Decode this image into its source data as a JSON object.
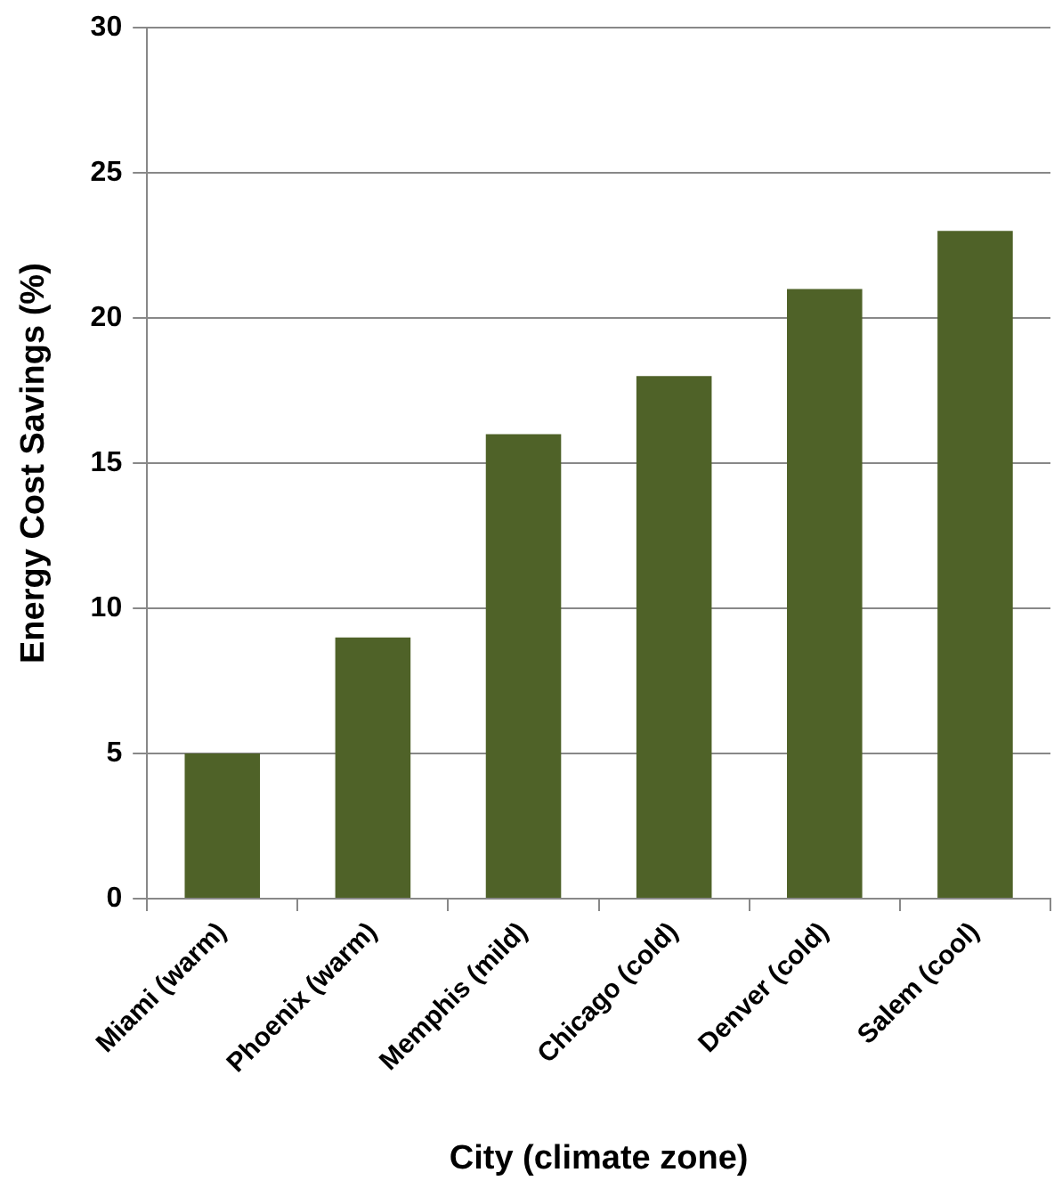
{
  "chart_data": {
    "type": "bar",
    "xlabel": "City (climate zone)",
    "ylabel": "Energy Cost Savings (%)",
    "categories": [
      "Miami (warm)",
      "Phoenix (warm)",
      "Memphis (mild)",
      "Chicago (cold)",
      "Denver (cold)",
      "Salem (cool)"
    ],
    "values": [
      5,
      9,
      16,
      18,
      21,
      23
    ],
    "color": "#4f6228",
    "ylim": [
      0,
      30
    ],
    "yticks": [
      0,
      5,
      10,
      15,
      20,
      25,
      30
    ],
    "grid": "y",
    "legend": false
  }
}
